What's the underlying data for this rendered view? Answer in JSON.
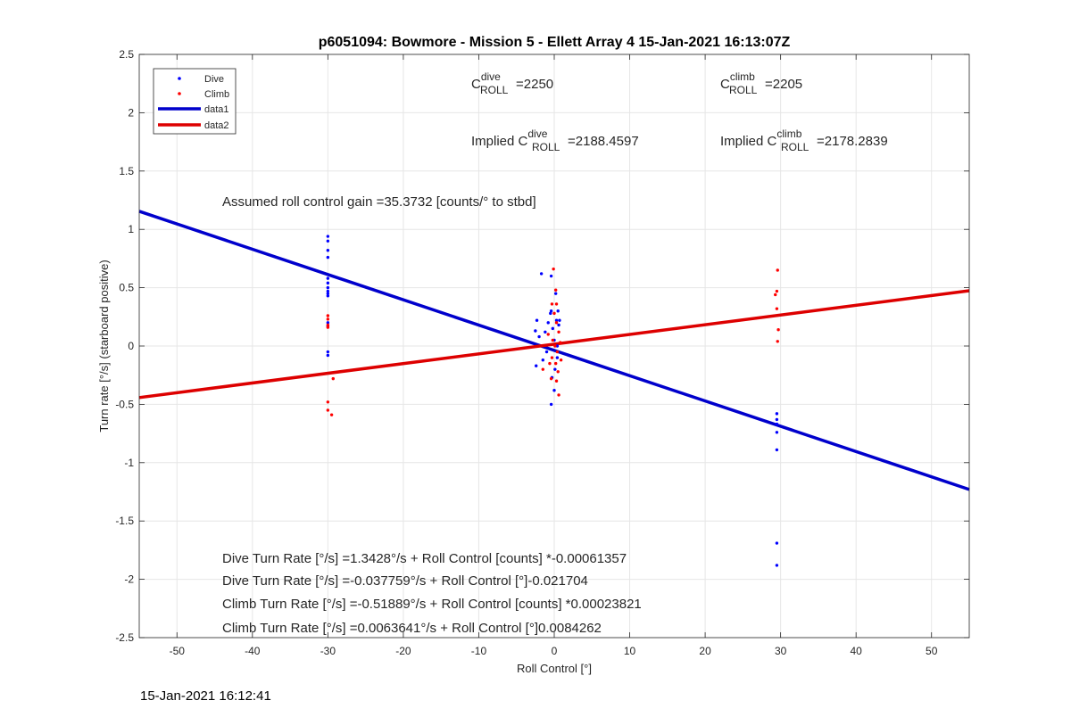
{
  "footer_timestamp": "15-Jan-2021 16:12:41",
  "chart_data": {
    "type": "scatter",
    "title": "p6051094: Bowmore - Mission 5 - Ellett Array 4 15-Jan-2021 16:13:07Z",
    "xlabel": "Roll Control [°]",
    "ylabel": "Turn rate [°/s] (starboard positive)",
    "xlim": [
      -55,
      55
    ],
    "ylim": [
      -2.5,
      2.5
    ],
    "xticks": [
      -50,
      -40,
      -30,
      -20,
      -10,
      0,
      10,
      20,
      30,
      40,
      50
    ],
    "yticks": [
      -2.5,
      -2,
      -1.5,
      -1,
      -0.5,
      0,
      0.5,
      1,
      1.5,
      2,
      2.5
    ],
    "grid": true,
    "legend_position": "top-left",
    "legend": [
      {
        "label": "Dive",
        "kind": "marker",
        "color": "#0000ff"
      },
      {
        "label": "Climb",
        "kind": "marker",
        "color": "#ff0000"
      },
      {
        "label": "data1",
        "kind": "line",
        "color": "#0000cc"
      },
      {
        "label": "data2",
        "kind": "line",
        "color": "#dd0000"
      }
    ],
    "series": [
      {
        "name": "Dive",
        "color": "#0000ff",
        "points": [
          [
            -30,
            0.94
          ],
          [
            -30,
            0.9
          ],
          [
            -30,
            0.82
          ],
          [
            -30,
            0.76
          ],
          [
            -30,
            0.58
          ],
          [
            -30,
            0.54
          ],
          [
            -30,
            0.5
          ],
          [
            -30,
            0.47
          ],
          [
            -30,
            0.45
          ],
          [
            -30,
            0.43
          ],
          [
            -30,
            0.2
          ],
          [
            -30,
            0.17
          ],
          [
            -30,
            -0.05
          ],
          [
            -30,
            -0.08
          ],
          [
            -1.7,
            0.62
          ],
          [
            -2.3,
            0.22
          ],
          [
            -2.5,
            0.13
          ],
          [
            -2,
            0.08
          ],
          [
            -1.2,
            0.12
          ],
          [
            -1.5,
            -0.12
          ],
          [
            -2.4,
            -0.17
          ],
          [
            -1,
            -0.05
          ],
          [
            -0.8,
            0.2
          ],
          [
            -0.5,
            0.28
          ],
          [
            -0.4,
            0.6
          ],
          [
            -0.4,
            0.3
          ],
          [
            -0.2,
            0.15
          ],
          [
            0,
            0.05
          ],
          [
            0.2,
            0.45
          ],
          [
            0.3,
            0.22
          ],
          [
            0.4,
            -0.1
          ],
          [
            -0.3,
            -0.27
          ],
          [
            0,
            -0.38
          ],
          [
            -0.4,
            -0.5
          ],
          [
            0.6,
            0.18
          ],
          [
            0.4,
            0.0
          ],
          [
            0.1,
            -0.2
          ],
          [
            0.7,
            0.22
          ],
          [
            0.5,
            0.3
          ],
          [
            29.5,
            -0.58
          ],
          [
            29.5,
            -0.63
          ],
          [
            29.5,
            -0.67
          ],
          [
            29.5,
            -0.74
          ],
          [
            29.5,
            -0.89
          ],
          [
            29.5,
            -1.69
          ],
          [
            29.5,
            -1.88
          ]
        ]
      },
      {
        "name": "Climb",
        "color": "#ff0000",
        "points": [
          [
            -30,
            0.26
          ],
          [
            -30,
            0.23
          ],
          [
            -30,
            0.18
          ],
          [
            -30,
            0.16
          ],
          [
            -30,
            -0.48
          ],
          [
            -30,
            -0.55
          ],
          [
            -29.3,
            -0.28
          ],
          [
            -29.5,
            -0.59
          ],
          [
            -0.1,
            0.66
          ],
          [
            0.2,
            0.48
          ],
          [
            0.3,
            0.36
          ],
          [
            -0.3,
            0.36
          ],
          [
            0,
            0.28
          ],
          [
            0.3,
            0.2
          ],
          [
            0.6,
            0.12
          ],
          [
            -0.2,
            0.05
          ],
          [
            0.1,
            0.0
          ],
          [
            0.4,
            -0.05
          ],
          [
            -0.3,
            -0.1
          ],
          [
            0.2,
            -0.15
          ],
          [
            0.5,
            -0.22
          ],
          [
            -0.4,
            -0.28
          ],
          [
            0.3,
            -0.3
          ],
          [
            0.6,
            -0.42
          ],
          [
            -1.5,
            -0.2
          ],
          [
            -0.8,
            0.1
          ],
          [
            0.8,
            0.03
          ],
          [
            0.9,
            -0.12
          ],
          [
            -0.6,
            -0.15
          ],
          [
            29.6,
            0.65
          ],
          [
            29.5,
            0.47
          ],
          [
            29.3,
            0.44
          ],
          [
            29.5,
            0.32
          ],
          [
            29.7,
            0.14
          ],
          [
            29.6,
            0.04
          ]
        ]
      }
    ],
    "fit_lines": [
      {
        "name": "data1",
        "color": "#0000cc",
        "x": [
          -55,
          55
        ],
        "y": [
          1.155,
          -1.23
        ]
      },
      {
        "name": "data2",
        "color": "#dd0000",
        "x": [
          -55,
          55
        ],
        "y": [
          -0.442,
          0.474
        ]
      }
    ],
    "annotations": {
      "c_roll_dive": {
        "base": "C",
        "sup": "dive",
        "sub": "ROLL",
        "value": "=2250"
      },
      "c_roll_climb": {
        "base": "C",
        "sup": "climb",
        "sub": "ROLL",
        "value": "=2205"
      },
      "implied_dive": {
        "prefix": "Implied C",
        "sup": "dive",
        "sub": "ROLL",
        "value": "=2188.4597"
      },
      "implied_climb": {
        "prefix": "Implied C",
        "sup": "climb",
        "sub": "ROLL",
        "value": "=2178.2839"
      },
      "gain": "Assumed roll control gain =35.3732 [counts/° to stbd]",
      "equations": [
        "Dive Turn Rate [°/s] =1.3428°/s + Roll Control [counts] *-0.00061357",
        "Dive Turn Rate [°/s] =-0.037759°/s + Roll Control [°]-0.021704",
        "Climb Turn Rate [°/s] =-0.51889°/s + Roll Control [counts] *0.00023821",
        "Climb Turn Rate [°/s] =0.0063641°/s + Roll Control [°]0.0084262"
      ]
    }
  }
}
